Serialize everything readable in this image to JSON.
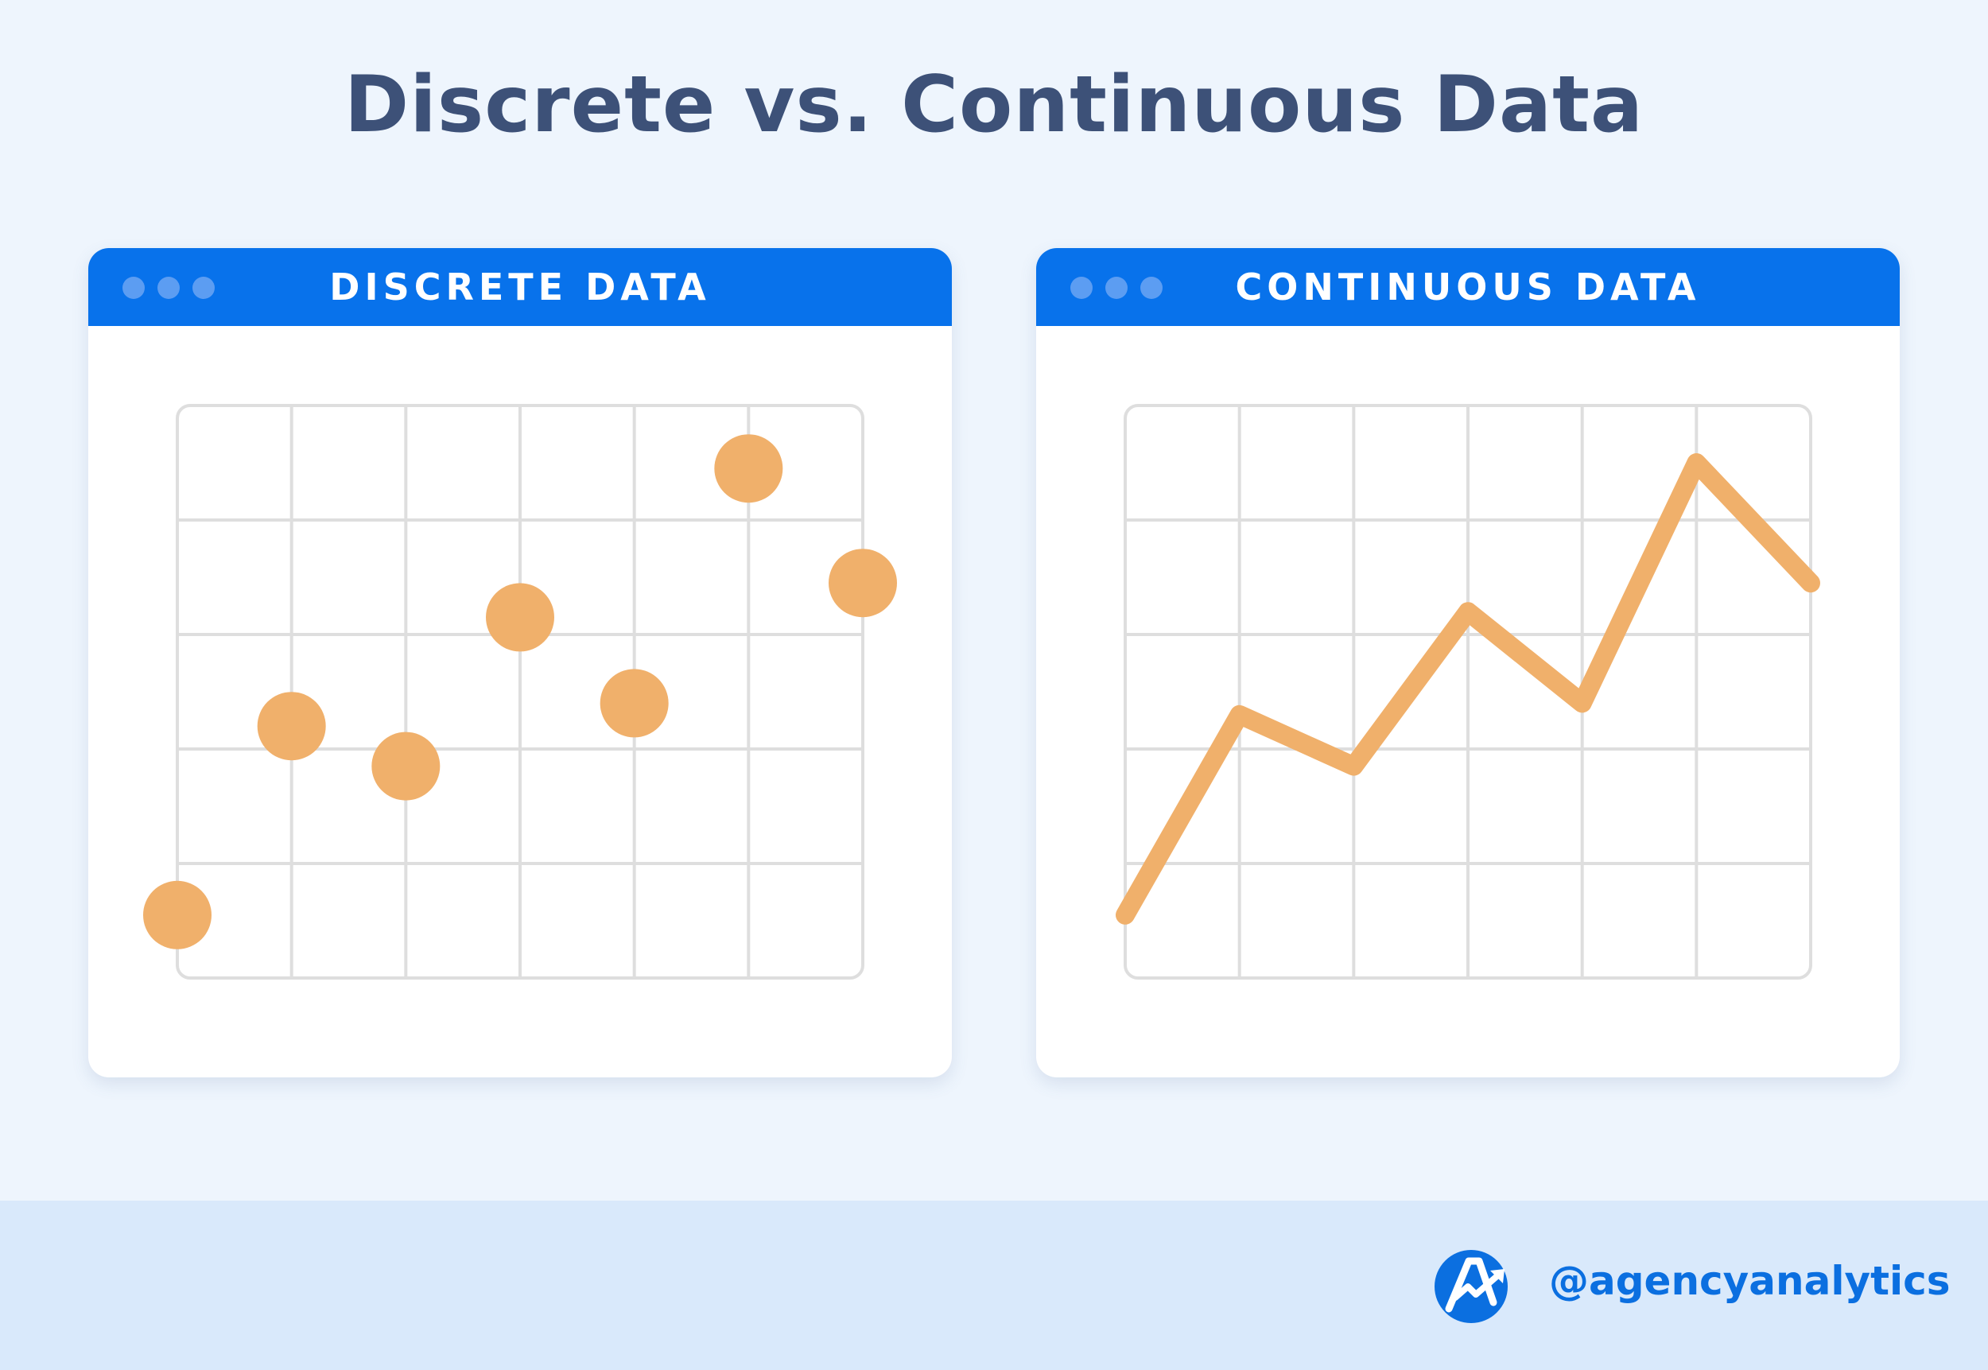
{
  "title": "Discrete vs. Continuous Data",
  "colors": {
    "accent": "#0872eb",
    "marker": "#f0b06b",
    "grid": "#dedede",
    "title": "#3d5178"
  },
  "chart_data": [
    {
      "type": "scatter",
      "window_title": "DISCRETE DATA",
      "x": [
        0,
        1,
        2,
        3,
        4,
        5,
        6
      ],
      "y": [
        0.55,
        2.2,
        1.85,
        3.15,
        2.4,
        4.45,
        3.45
      ],
      "xlim": [
        0,
        6
      ],
      "ylim": [
        0,
        5
      ],
      "grid": true,
      "title": "",
      "xlabel": "",
      "ylabel": ""
    },
    {
      "type": "line",
      "window_title": "CONTINUOUS DATA",
      "x": [
        0,
        1,
        2,
        3,
        4,
        5,
        6
      ],
      "y": [
        0.55,
        2.3,
        1.85,
        3.2,
        2.4,
        4.5,
        3.45
      ],
      "xlim": [
        0,
        6
      ],
      "ylim": [
        0,
        5
      ],
      "grid": true,
      "title": "",
      "xlabel": "",
      "ylabel": ""
    }
  ],
  "footer": {
    "logo_icon": "agencyanalytics-logo-icon",
    "handle": "@agencyanalytics"
  }
}
